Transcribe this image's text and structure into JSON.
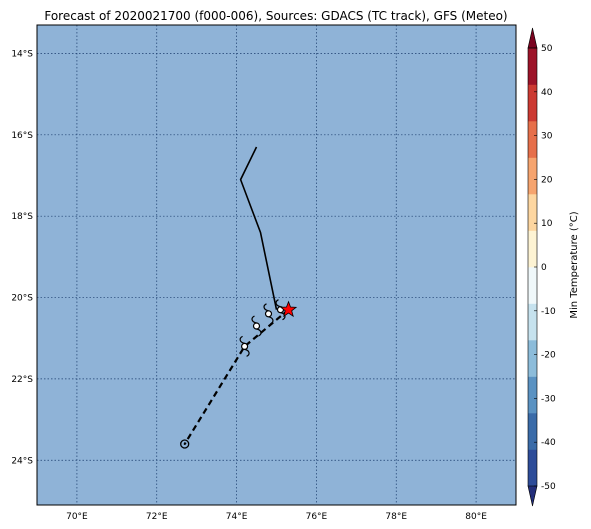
{
  "title": "Forecast of 2020021700 (f000-006), Sources: GDACS (TC track), GFS (Meteo)",
  "colors": {
    "ocean": "#8fb3d7",
    "grid": "#1b3d6e",
    "track": "#000000",
    "marker": "#ff0000"
  },
  "map": {
    "lon_range": [
      69,
      81
    ],
    "lat_range": [
      -25.1,
      -13.3
    ],
    "x_ticks": [
      {
        "value": 70,
        "label": "70°E"
      },
      {
        "value": 72,
        "label": "72°E"
      },
      {
        "value": 74,
        "label": "74°E"
      },
      {
        "value": 76,
        "label": "76°E"
      },
      {
        "value": 78,
        "label": "78°E"
      },
      {
        "value": 80,
        "label": "80°E"
      }
    ],
    "y_ticks": [
      {
        "value": -14,
        "label": "14°S"
      },
      {
        "value": -16,
        "label": "16°S"
      },
      {
        "value": -18,
        "label": "18°S"
      },
      {
        "value": -20,
        "label": "20°S"
      },
      {
        "value": -22,
        "label": "22°S"
      },
      {
        "value": -24,
        "label": "24°S"
      }
    ],
    "past_track": [
      [
        74.5,
        -16.3
      ],
      [
        74.1,
        -17.1
      ],
      [
        74.6,
        -18.4
      ],
      [
        75.0,
        -20.3
      ]
    ],
    "forecast_track": [
      [
        75.3,
        -20.3
      ],
      [
        74.2,
        -21.2
      ],
      [
        72.7,
        -23.6
      ]
    ],
    "cyclone_symbols": [
      [
        75.1,
        -20.3
      ],
      [
        74.8,
        -20.4
      ],
      [
        74.5,
        -20.7
      ],
      [
        74.2,
        -21.2
      ]
    ],
    "forecast_end": [
      72.7,
      -23.6
    ],
    "current_position": [
      75.3,
      -20.3
    ]
  },
  "colorbar": {
    "label": "Min Temperature (°C)",
    "range": [
      -50,
      50
    ],
    "ticks": [
      "-50",
      "-40",
      "-30",
      "-20",
      "-10",
      "0",
      "10",
      "20",
      "30",
      "40",
      "50"
    ],
    "colors": [
      "#232e7a",
      "#2d4c99",
      "#3a6ba8",
      "#5a92c2",
      "#8cbcda",
      "#c6e2ee",
      "#f0f8fa",
      "#fdf3d3",
      "#fdd6a0",
      "#f6a46e",
      "#e66f4a",
      "#cc3a32",
      "#9c1328",
      "#7a0420"
    ]
  }
}
